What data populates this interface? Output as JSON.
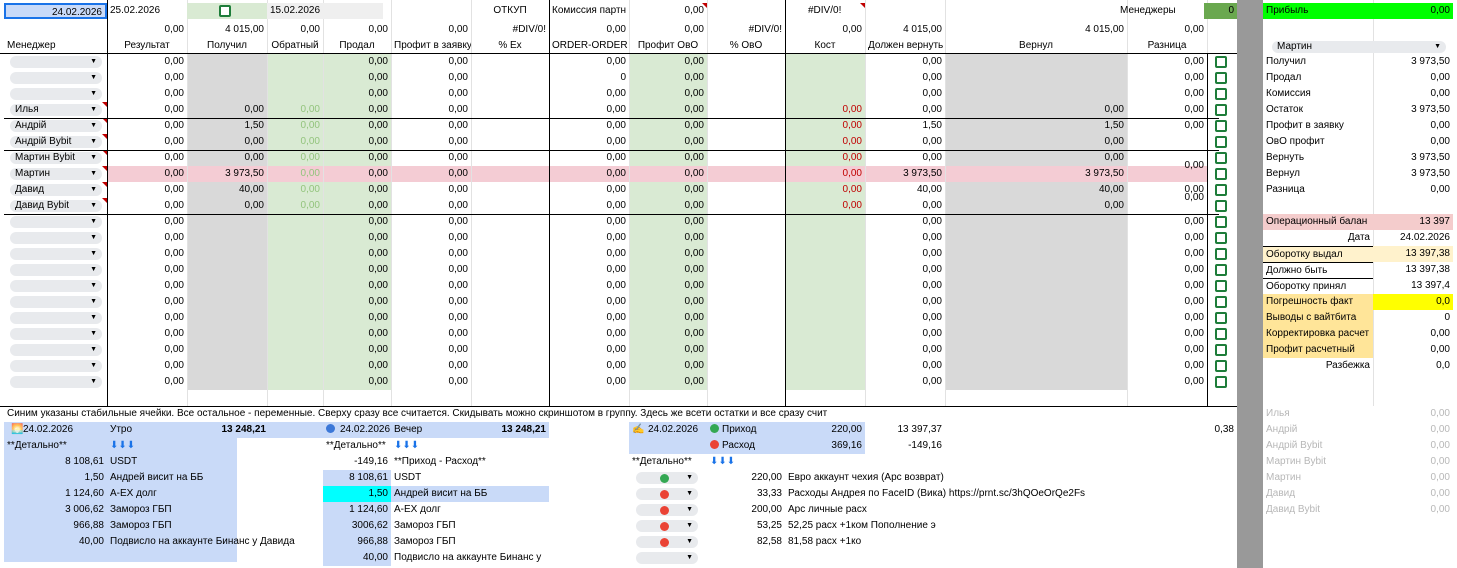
{
  "top": {
    "date1": "24.02.2026",
    "date2": "25.02.2026",
    "date3": "15.02.2026",
    "otkup": "ОТКУП",
    "komissia_label": "Комиссия партн",
    "komissia_val": "0,00",
    "div": "#DIV/0!",
    "managers_label": "Менеджеры",
    "managers_val": "0",
    "profit_label": "Прибыль",
    "profit_val": "0,00"
  },
  "row2": {
    "a": "0,00",
    "b": "4 015,00",
    "c": "0,00",
    "d": "0,00",
    "e": "0,00",
    "f": "#DIV/0!",
    "g": "0,00",
    "h": "0,00",
    "i": "#DIV/0!",
    "j": "0,00",
    "k": "4 015,00",
    "l": "4 015,00",
    "m": "0,00"
  },
  "headers": [
    "Менеджер",
    "Результат",
    "Получил",
    "Обратный",
    "Продал",
    "Профит в заявку",
    "% Ex",
    "ORDER-ORDER",
    "Профит ОвО",
    "% ОвО",
    "Кост",
    "Должен вернуть",
    "Вернул",
    "Разница"
  ],
  "rows": [
    {
      "name": "",
      "res": "0,00",
      "got": "",
      "back": "",
      "sold": "0,00",
      "pz": "0,00",
      "oo": "0,00",
      "po": "0,00",
      "cost": "",
      "dv": "0,00",
      "ver": "",
      "raz": "0,00"
    },
    {
      "name": "",
      "res": "0,00",
      "got": "",
      "back": "",
      "sold": "0,00",
      "pz": "0,00",
      "oo": "0",
      "po": "0,00",
      "cost": "",
      "dv": "0,00",
      "ver": "",
      "raz": "0,00"
    },
    {
      "name": "",
      "res": "0,00",
      "got": "",
      "back": "",
      "sold": "0,00",
      "pz": "0,00",
      "oo": "0,00",
      "po": "0,00",
      "cost": "",
      "dv": "0,00",
      "ver": "",
      "raz": "0,00"
    },
    {
      "name": "Илья",
      "res": "0,00",
      "got": "0,00",
      "back": "0,00",
      "sold": "0,00",
      "pz": "0,00",
      "oo": "0,00",
      "po": "0,00",
      "cost": "0,00",
      "dv": "0,00",
      "ver": "0,00",
      "raz": "0,00"
    },
    {
      "name": "Андрій",
      "res": "0,00",
      "got": "1,50",
      "back": "0,00",
      "sold": "0,00",
      "pz": "0,00",
      "oo": "0,00",
      "po": "0,00",
      "cost": "0,00",
      "dv": "1,50",
      "ver": "1,50",
      "raz": "0,00"
    },
    {
      "name": "Андрій Bybit",
      "res": "0,00",
      "got": "0,00",
      "back": "0,00",
      "sold": "0,00",
      "pz": "0,00",
      "oo": "0,00",
      "po": "0,00",
      "cost": "0,00",
      "dv": "0,00",
      "ver": "0,00",
      "raz": ""
    },
    {
      "name": "Мартин Bybit",
      "res": "0,00",
      "got": "0,00",
      "back": "0,00",
      "sold": "0,00",
      "pz": "0,00",
      "oo": "0,00",
      "po": "0,00",
      "cost": "0,00",
      "dv": "0,00",
      "ver": "0,00",
      "raz": ""
    },
    {
      "name": "Мартин",
      "res": "0,00",
      "got": "3 973,50",
      "back": "0,00",
      "sold": "0,00",
      "pz": "0,00",
      "oo": "0,00",
      "po": "0,00",
      "cost": "0,00",
      "dv": "3 973,50",
      "ver": "3 973,50",
      "raz": ""
    },
    {
      "name": "Давид",
      "res": "0,00",
      "got": "40,00",
      "back": "0,00",
      "sold": "0,00",
      "pz": "0,00",
      "oo": "0,00",
      "po": "0,00",
      "cost": "0,00",
      "dv": "40,00",
      "ver": "40,00",
      "raz": ""
    },
    {
      "name": "Давид Bybit",
      "res": "0,00",
      "got": "0,00",
      "back": "0,00",
      "sold": "0,00",
      "pz": "0,00",
      "oo": "0,00",
      "po": "0,00",
      "cost": "0,00",
      "dv": "0,00",
      "ver": "0,00",
      "raz": ""
    },
    {
      "name": "",
      "res": "0,00",
      "got": "",
      "back": "",
      "sold": "0,00",
      "pz": "0,00",
      "oo": "0,00",
      "po": "0,00",
      "cost": "",
      "dv": "0,00",
      "ver": "",
      "raz": "0,00"
    },
    {
      "name": "",
      "res": "0,00",
      "got": "",
      "back": "",
      "sold": "0,00",
      "pz": "0,00",
      "oo": "0,00",
      "po": "0,00",
      "cost": "",
      "dv": "0,00",
      "ver": "",
      "raz": "0,00"
    },
    {
      "name": "",
      "res": "0,00",
      "got": "",
      "back": "",
      "sold": "0,00",
      "pz": "0,00",
      "oo": "0,00",
      "po": "0,00",
      "cost": "",
      "dv": "0,00",
      "ver": "",
      "raz": "0,00"
    },
    {
      "name": "",
      "res": "0,00",
      "got": "",
      "back": "",
      "sold": "0,00",
      "pz": "0,00",
      "oo": "0,00",
      "po": "0,00",
      "cost": "",
      "dv": "0,00",
      "ver": "",
      "raz": "0,00"
    },
    {
      "name": "",
      "res": "0,00",
      "got": "",
      "back": "",
      "sold": "0,00",
      "pz": "0,00",
      "oo": "0,00",
      "po": "0,00",
      "cost": "",
      "dv": "0,00",
      "ver": "",
      "raz": "0,00"
    },
    {
      "name": "",
      "res": "0,00",
      "got": "",
      "back": "",
      "sold": "0,00",
      "pz": "0,00",
      "oo": "0,00",
      "po": "0,00",
      "cost": "",
      "dv": "0,00",
      "ver": "",
      "raz": "0,00"
    },
    {
      "name": "",
      "res": "0,00",
      "got": "",
      "back": "",
      "sold": "0,00",
      "pz": "0,00",
      "oo": "0,00",
      "po": "0,00",
      "cost": "",
      "dv": "0,00",
      "ver": "",
      "raz": "0,00"
    },
    {
      "name": "",
      "res": "0,00",
      "got": "",
      "back": "",
      "sold": "0,00",
      "pz": "0,00",
      "oo": "0,00",
      "po": "0,00",
      "cost": "",
      "dv": "0,00",
      "ver": "",
      "raz": "0,00"
    },
    {
      "name": "",
      "res": "0,00",
      "got": "",
      "back": "",
      "sold": "0,00",
      "pz": "0,00",
      "oo": "0,00",
      "po": "0,00",
      "cost": "",
      "dv": "0,00",
      "ver": "",
      "raz": "0,00"
    },
    {
      "name": "",
      "res": "0,00",
      "got": "",
      "back": "",
      "sold": "0,00",
      "pz": "0,00",
      "oo": "0,00",
      "po": "0,00",
      "cost": "",
      "dv": "0,00",
      "ver": "",
      "raz": "0,00"
    },
    {
      "name": "",
      "res": "0,00",
      "got": "",
      "back": "",
      "sold": "0,00",
      "pz": "0,00",
      "oo": "0,00",
      "po": "0,00",
      "cost": "",
      "dv": "0,00",
      "ver": "",
      "raz": "0,00"
    }
  ],
  "merged_raz": [
    "0,00",
    "0,00",
    "0,00"
  ],
  "note": "Синим указаны стабильные ячейки. Все остальное - переменные. Сверху сразу все считается. Скидывать можно скриншотом в группу. Здесь же всети остатки и все сразу счит",
  "morning": {
    "date": "24.02.2026",
    "label": "Утро",
    "total": "13 248,21",
    "detail": "**Детально**",
    "arrows": "⬇⬇⬇",
    "items": [
      {
        "v": "8 108,61",
        "t": "USDT"
      },
      {
        "v": "1,50",
        "t": "Андрей висит на ББ"
      },
      {
        "v": "1 124,60",
        "t": "A-EX долг"
      },
      {
        "v": "3 006,62",
        "t": "Замороз ГБП"
      },
      {
        "v": "966,88",
        "t": "Замороз ГБП"
      },
      {
        "v": "40,00",
        "t": "Подвисло на аккаунте Бинанс у Давида"
      }
    ]
  },
  "evening": {
    "date": "24.02.2026",
    "label": "Вечер",
    "total": "13 248,21",
    "detail": "**Детально**",
    "arrows": "⬇⬇⬇",
    "minus": "-149,16",
    "pr": "**Приход - Расход**",
    "items": [
      {
        "v": "8 108,61",
        "t": "USDT"
      },
      {
        "v": "1,50",
        "t": "Андрей висит на ББ"
      },
      {
        "v": "1 124,60",
        "t": "A-EX долг"
      },
      {
        "v": "3006,62",
        "t": "Замороз ГБП"
      },
      {
        "v": "966,88",
        "t": "Замороз ГБП"
      },
      {
        "v": "40,00",
        "t": "Подвисло на аккаунте Бинанс у"
      }
    ]
  },
  "flow": {
    "date": "24.02.2026",
    "in_label": "Приход",
    "in_val": "220,00",
    "out_label": "Расход",
    "out_val": "369,16",
    "total1": "13 397,37",
    "total2": "-149,16",
    "x": "0,38",
    "detail": "**Детально**",
    "arrows": "⬇⬇⬇",
    "items": [
      {
        "v": "220,00",
        "t": "Евро аккаунт чехия (Арс возврат)",
        "c": "green"
      },
      {
        "v": "33,33",
        "t": "Расходы Андрея по FaceID (Вика) https://prnt.sc/3hQOeOrQe2Fs",
        "c": "red"
      },
      {
        "v": "200,00",
        "t": "Арс личные расх",
        "c": "red"
      },
      {
        "v": "53,25",
        "t": "52,25 расх +1ком Пополнение э",
        "c": "red"
      },
      {
        "v": "82,58",
        "t": "81,58 расх +1ко",
        "c": "red"
      },
      {
        "v": "",
        "t": "",
        "c": ""
      }
    ]
  },
  "side": {
    "manager": "Мартин",
    "stats": [
      {
        "l": "Получил",
        "v": "3 973,50"
      },
      {
        "l": "Продал",
        "v": "0,00"
      },
      {
        "l": "Комиссия",
        "v": "0,00"
      },
      {
        "l": "Остаток",
        "v": "3 973,50"
      },
      {
        "l": "Профит в заявку",
        "v": "0,00"
      },
      {
        "l": "ОвО профит",
        "v": "0,00"
      },
      {
        "l": "Вернуть",
        "v": "3 973,50"
      },
      {
        "l": "Вернул",
        "v": "3 973,50"
      },
      {
        "l": "Разница",
        "v": "0,00"
      }
    ],
    "op_label": "Операционный балан",
    "op_val": "13 397",
    "date_label": "Дата",
    "date_val": "24.02.2026",
    "calc": [
      {
        "l": "Оборотку выдал",
        "v": "13 397,38"
      },
      {
        "l": "Должно быть",
        "v": "13 397,38"
      },
      {
        "l": "Оборотку принял",
        "v": "13 397,4"
      },
      {
        "l": "Погрешность факт",
        "v": "0,0"
      },
      {
        "l": "Выводы с вайтбита",
        "v": "0"
      },
      {
        "l": "Корректировка расчет",
        "v": "0,00"
      },
      {
        "l": "Профит расчетный",
        "v": "0,00"
      }
    ],
    "razb_label": "Разбежка",
    "razb_val": "0,0",
    "muted": [
      {
        "l": "Илья",
        "v": "0,00"
      },
      {
        "l": "Андрій",
        "v": "0,00"
      },
      {
        "l": "Андрій Bybit",
        "v": "0,00"
      },
      {
        "l": "Мартин Bybit",
        "v": "0,00"
      },
      {
        "l": "Мартин",
        "v": "0,00"
      },
      {
        "l": "Давид",
        "v": "0,00"
      },
      {
        "l": "Давид Bybit",
        "v": "0,00"
      }
    ]
  }
}
